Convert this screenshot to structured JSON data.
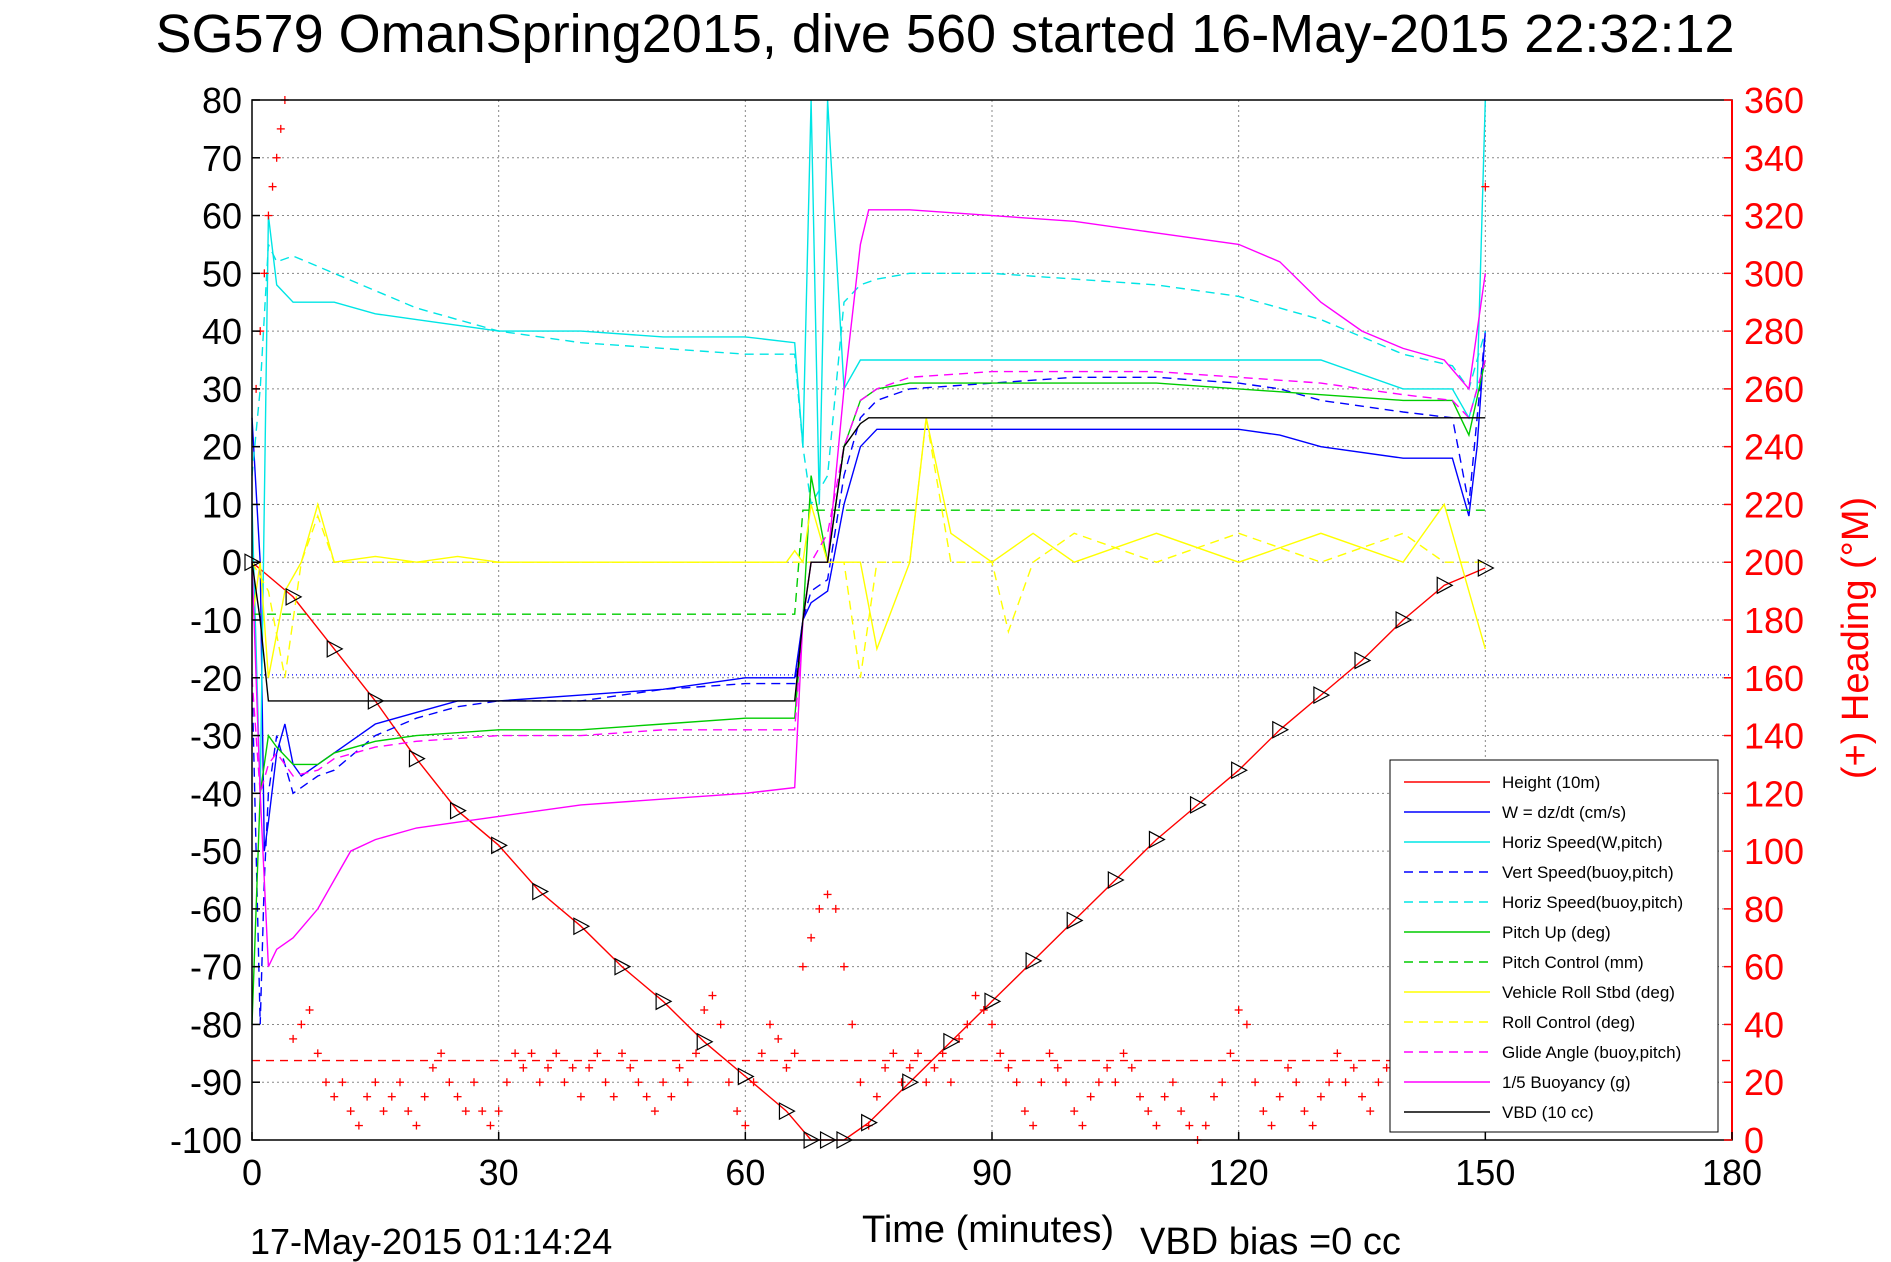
{
  "chart_data": {
    "type": "line",
    "title": "SG579 OmanSpring2015, dive 560 started 16-May-2015 22:32:12",
    "xlabel": "Time (minutes)",
    "ylabel": "",
    "y2label": "(+) Heading (°M)",
    "xlim": [
      0,
      180
    ],
    "ylim": [
      -100,
      80
    ],
    "y2lim": [
      0,
      360
    ],
    "xticks": [
      "0",
      "30",
      "60",
      "90",
      "120",
      "150",
      "180"
    ],
    "yticks": [
      "80",
      "70",
      "60",
      "50",
      "40",
      "30",
      "20",
      "10",
      "0",
      "-10",
      "-20",
      "-30",
      "-40",
      "-50",
      "-60",
      "-70",
      "-80",
      "-90",
      "-100"
    ],
    "y2ticks": [
      "360",
      "340",
      "320",
      "300",
      "280",
      "260",
      "240",
      "220",
      "200",
      "180",
      "160",
      "140",
      "120",
      "100",
      "80",
      "60",
      "40",
      "20",
      "0"
    ],
    "grid": true,
    "legend_position": "bottom-right",
    "footer_left": "17-May-2015 01:14:24",
    "footer_right": "VBD bias =0 cc",
    "colors": {
      "red": "#ff0000",
      "blue": "#0000ff",
      "cyan": "#00e5e5",
      "green": "#00cc00",
      "yellow": "#ffff00",
      "magenta": "#ff00ff",
      "black": "#000000"
    },
    "series": [
      {
        "name": "Height (10m)",
        "color": "#ff0000",
        "style": "solid",
        "x": [
          0,
          5,
          10,
          15,
          20,
          25,
          30,
          35,
          40,
          45,
          50,
          55,
          60,
          65,
          68,
          70,
          72,
          75,
          80,
          85,
          90,
          95,
          100,
          105,
          110,
          115,
          120,
          125,
          130,
          135,
          140,
          145,
          150
        ],
        "y": [
          0,
          -6,
          -15,
          -24,
          -34,
          -43,
          -49,
          -57,
          -63,
          -70,
          -76,
          -83,
          -89,
          -95,
          -100,
          -100,
          -100,
          -97,
          -90,
          -83,
          -76,
          -69,
          -62,
          -55,
          -48,
          -42,
          -36,
          -29,
          -23,
          -17,
          -10,
          -4,
          -1
        ]
      },
      {
        "name": "W = dz/dt (cm/s)",
        "color": "#0000ff",
        "style": "solid",
        "x": [
          0,
          1,
          1.5,
          2,
          3,
          4,
          5,
          6,
          8,
          10,
          15,
          20,
          25,
          30,
          40,
          50,
          60,
          66,
          67,
          68,
          70,
          72,
          74,
          76,
          80,
          90,
          100,
          110,
          120,
          125,
          130,
          140,
          146,
          148,
          149,
          150
        ],
        "y": [
          25,
          0,
          -50,
          -45,
          -33,
          -28,
          -35,
          -37,
          -35,
          -33,
          -28,
          -26,
          -24,
          -24,
          -23,
          -22,
          -20,
          -20,
          -10,
          -7,
          -5,
          10,
          20,
          23,
          23,
          23,
          23,
          23,
          23,
          22,
          20,
          18,
          18,
          8,
          20,
          40
        ]
      },
      {
        "name": "Horiz Speed(W,pitch)",
        "color": "#00e5e5",
        "style": "solid",
        "x": [
          0,
          1,
          2,
          3,
          5,
          10,
          15,
          20,
          25,
          30,
          40,
          50,
          60,
          66,
          67,
          68,
          69,
          70,
          72,
          74,
          80,
          90,
          100,
          110,
          120,
          130,
          140,
          146,
          148,
          149,
          150
        ],
        "y": [
          10,
          -40,
          60,
          48,
          45,
          45,
          43,
          42,
          41,
          40,
          40,
          39,
          39,
          38,
          20,
          80,
          10,
          80,
          30,
          35,
          35,
          35,
          35,
          35,
          35,
          35,
          30,
          30,
          25,
          30,
          80
        ]
      },
      {
        "name": "Vert Speed(buoy,pitch)",
        "color": "#0000ff",
        "style": "dashed",
        "x": [
          0,
          1,
          1.5,
          2,
          3,
          5,
          8,
          10,
          15,
          20,
          25,
          30,
          40,
          50,
          60,
          66,
          67,
          68,
          70,
          72,
          74,
          76,
          80,
          90,
          100,
          110,
          120,
          125,
          130,
          140,
          146,
          148,
          150
        ],
        "y": [
          -20,
          -80,
          -55,
          -40,
          -30,
          -40,
          -37,
          -36,
          -30,
          -27,
          -25,
          -24,
          -24,
          -22,
          -21,
          -21,
          -10,
          -5,
          -3,
          15,
          25,
          28,
          30,
          31,
          32,
          32,
          31,
          30,
          28,
          26,
          25,
          10,
          40
        ]
      },
      {
        "name": "Horiz Speed(buoy,pitch)",
        "color": "#00e5e5",
        "style": "dashed",
        "x": [
          0,
          1,
          2,
          3,
          5,
          10,
          20,
          30,
          40,
          50,
          60,
          66,
          67,
          68,
          70,
          72,
          74,
          76,
          80,
          90,
          100,
          110,
          120,
          130,
          140,
          146,
          148,
          150
        ],
        "y": [
          15,
          30,
          55,
          52,
          53,
          50,
          44,
          40,
          38,
          37,
          36,
          36,
          20,
          10,
          15,
          45,
          48,
          49,
          50,
          50,
          49,
          48,
          46,
          42,
          36,
          34,
          30,
          40
        ]
      },
      {
        "name": "Pitch Up (deg)",
        "color": "#00cc00",
        "style": "solid",
        "x": [
          0,
          1,
          2,
          3,
          5,
          8,
          10,
          15,
          20,
          30,
          40,
          50,
          60,
          66,
          67,
          68,
          70,
          72,
          74,
          76,
          80,
          90,
          100,
          110,
          120,
          130,
          140,
          146,
          148,
          150
        ],
        "y": [
          -80,
          -40,
          -30,
          -32,
          -35,
          -35,
          -33,
          -31,
          -30,
          -29,
          -29,
          -28,
          -27,
          -27,
          -10,
          15,
          0,
          20,
          28,
          30,
          31,
          31,
          31,
          31,
          30,
          29,
          28,
          28,
          22,
          35
        ]
      },
      {
        "name": "Pitch Control (mm)",
        "color": "#00cc00",
        "style": "dashed",
        "x": [
          0,
          1.5,
          2,
          3,
          65,
          66,
          67,
          68,
          150
        ],
        "y": [
          -9,
          -9,
          -9,
          -9,
          -9,
          -9,
          9,
          9,
          9
        ]
      },
      {
        "name": "Vehicle Roll Stbd (deg)",
        "color": "#ffff00",
        "style": "solid",
        "x": [
          0,
          1,
          2,
          4,
          6,
          8,
          10,
          15,
          20,
          25,
          30,
          40,
          50,
          60,
          65,
          66,
          67,
          68,
          70,
          72,
          74,
          76,
          80,
          82,
          85,
          90,
          95,
          100,
          110,
          120,
          130,
          140,
          145,
          150
        ],
        "y": [
          -10,
          0,
          -20,
          -5,
          0,
          10,
          0,
          1,
          0,
          1,
          0,
          0,
          0,
          0,
          0,
          2,
          0,
          10,
          0,
          0,
          0,
          -15,
          0,
          25,
          5,
          0,
          5,
          0,
          5,
          0,
          5,
          0,
          10,
          -15
        ]
      },
      {
        "name": "Roll Control (deg)",
        "color": "#ffff00",
        "style": "dashed",
        "x": [
          0,
          2,
          4,
          6,
          8,
          10,
          20,
          30,
          40,
          50,
          60,
          66,
          68,
          72,
          74,
          76,
          80,
          82,
          85,
          90,
          92,
          95,
          100,
          110,
          120,
          130,
          140,
          145,
          150
        ],
        "y": [
          0,
          -5,
          -20,
          0,
          8,
          0,
          0,
          0,
          0,
          0,
          0,
          0,
          0,
          0,
          -20,
          0,
          0,
          25,
          0,
          0,
          -12,
          0,
          5,
          0,
          5,
          0,
          5,
          0,
          0
        ]
      },
      {
        "name": "Glide Angle (buoy,pitch)",
        "color": "#ff00ff",
        "style": "dashed",
        "x": [
          0,
          1,
          2,
          3,
          5,
          8,
          10,
          15,
          20,
          30,
          40,
          50,
          60,
          66,
          67,
          68,
          70,
          72,
          74,
          76,
          80,
          90,
          100,
          110,
          120,
          130,
          140,
          146,
          148,
          150
        ],
        "y": [
          -20,
          -40,
          -35,
          -33,
          -37,
          -36,
          -34,
          -32,
          -31,
          -30,
          -30,
          -29,
          -29,
          -29,
          -10,
          0,
          5,
          20,
          28,
          30,
          32,
          33,
          33,
          33,
          32,
          31,
          29,
          28,
          25,
          35
        ]
      },
      {
        "name": "1/5 Buoyancy (g)",
        "color": "#ff00ff",
        "style": "solid",
        "x": [
          0,
          1,
          2,
          3,
          5,
          8,
          10,
          12,
          15,
          20,
          25,
          30,
          40,
          50,
          60,
          66,
          67,
          68,
          70,
          72,
          74,
          75,
          80,
          90,
          100,
          110,
          120,
          125,
          130,
          135,
          140,
          145,
          148,
          150
        ],
        "y": [
          0,
          -40,
          -70,
          -67,
          -65,
          -60,
          -55,
          -50,
          -48,
          -46,
          -45,
          -44,
          -42,
          -41,
          -40,
          -39,
          -10,
          0,
          0,
          30,
          55,
          61,
          61,
          60,
          59,
          57,
          55,
          52,
          45,
          40,
          37,
          35,
          30,
          50
        ]
      },
      {
        "name": "VBD (10 cc)",
        "color": "#000000",
        "style": "solid",
        "x": [
          0,
          1,
          2,
          3,
          66,
          67,
          68,
          70,
          72,
          74,
          75,
          150
        ],
        "y": [
          0,
          -10,
          -24,
          -24,
          -24,
          -10,
          0,
          0,
          20,
          24,
          25,
          25
        ]
      }
    ],
    "reference_lines": [
      {
        "axis": "y2",
        "value": 27.5,
        "color": "#ff0000",
        "style": "dashed"
      },
      {
        "axis": "y",
        "value": -19.5,
        "color": "#0000ff",
        "style": "dotted"
      }
    ],
    "heading_samples": {
      "color": "#ff0000",
      "marker": "+",
      "x": [
        0.5,
        1,
        1.5,
        2,
        2.5,
        3,
        3.5,
        4,
        5,
        6,
        7,
        8,
        9,
        10,
        11,
        12,
        13,
        14,
        15,
        16,
        17,
        18,
        19,
        20,
        21,
        22,
        23,
        24,
        25,
        26,
        27,
        28,
        29,
        30,
        31,
        32,
        33,
        34,
        35,
        36,
        37,
        38,
        39,
        40,
        41,
        42,
        43,
        44,
        45,
        46,
        47,
        48,
        49,
        50,
        51,
        52,
        53,
        54,
        55,
        56,
        57,
        58,
        59,
        60,
        61,
        62,
        63,
        64,
        65,
        66,
        67,
        68,
        69,
        70,
        71,
        72,
        73,
        74,
        75,
        76,
        77,
        78,
        79,
        80,
        81,
        82,
        83,
        84,
        85,
        86,
        87,
        88,
        89,
        90,
        91,
        92,
        93,
        94,
        95,
        96,
        97,
        98,
        99,
        100,
        101,
        102,
        103,
        104,
        105,
        106,
        107,
        108,
        109,
        110,
        111,
        112,
        113,
        114,
        115,
        116,
        117,
        118,
        119,
        120,
        121,
        122,
        123,
        124,
        125,
        126,
        127,
        128,
        129,
        130,
        131,
        132,
        133,
        134,
        135,
        136,
        137,
        138,
        139,
        140,
        141,
        142,
        143,
        144,
        145,
        146,
        147,
        148,
        149,
        150
      ],
      "y": [
        260,
        280,
        300,
        320,
        330,
        340,
        350,
        360,
        35,
        40,
        45,
        30,
        20,
        15,
        20,
        10,
        5,
        15,
        20,
        10,
        15,
        20,
        10,
        5,
        15,
        25,
        30,
        20,
        15,
        10,
        20,
        10,
        5,
        10,
        20,
        30,
        25,
        30,
        20,
        25,
        30,
        20,
        25,
        15,
        25,
        30,
        20,
        15,
        30,
        25,
        20,
        15,
        10,
        20,
        15,
        25,
        20,
        30,
        45,
        50,
        40,
        20,
        10,
        5,
        20,
        30,
        40,
        35,
        25,
        30,
        60,
        70,
        80,
        85,
        80,
        60,
        40,
        20,
        5,
        15,
        25,
        30,
        20,
        25,
        30,
        20,
        25,
        30,
        20,
        35,
        40,
        50,
        45,
        40,
        30,
        25,
        20,
        10,
        5,
        20,
        30,
        25,
        20,
        10,
        5,
        15,
        20,
        25,
        20,
        30,
        25,
        15,
        10,
        5,
        15,
        20,
        10,
        5,
        0,
        5,
        15,
        20,
        30,
        45,
        40,
        20,
        10,
        5,
        15,
        25,
        20,
        10,
        5,
        15,
        20,
        30,
        20,
        25,
        15,
        10,
        20,
        25,
        10,
        5,
        20,
        30,
        40,
        25,
        30,
        20,
        15,
        10,
        20,
        330
      ]
    }
  }
}
